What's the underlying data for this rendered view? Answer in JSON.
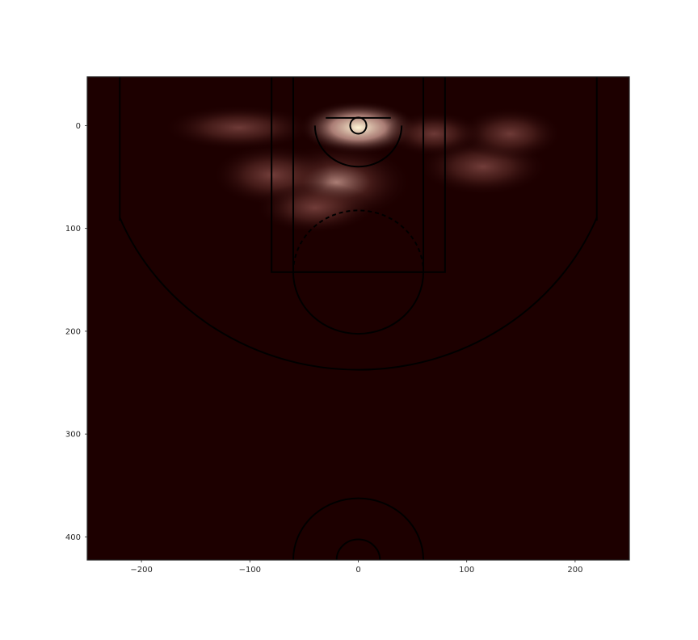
{
  "chart_data": {
    "type": "heatmap",
    "title": "",
    "xlabel": "",
    "ylabel": "",
    "xlim": [
      -250,
      250
    ],
    "ylim": [
      422.5,
      -47.5
    ],
    "x_ticks": [
      -200,
      -100,
      0,
      100,
      200
    ],
    "x_tick_labels": [
      "−200",
      "−100",
      "0",
      "100",
      "200"
    ],
    "y_ticks": [
      0,
      100,
      200,
      300,
      400
    ],
    "y_tick_labels": [
      "0",
      "100",
      "200",
      "300",
      "400"
    ],
    "grid": false,
    "legend": "none",
    "colormap": [
      "#1d0000",
      "#5a2a26",
      "#9a5a55",
      "#d9a79c",
      "#fff6d6"
    ],
    "background_color": "#1d0000",
    "density_peaks": [
      {
        "x": 0,
        "y": 2,
        "weight": 1.0
      },
      {
        "x": -110,
        "y": 2,
        "weight": 0.22
      },
      {
        "x": -20,
        "y": 55,
        "weight": 0.45
      },
      {
        "x": -80,
        "y": 48,
        "weight": 0.3
      },
      {
        "x": 115,
        "y": 40,
        "weight": 0.28
      },
      {
        "x": 140,
        "y": 8,
        "weight": 0.22
      },
      {
        "x": 70,
        "y": 8,
        "weight": 0.2
      },
      {
        "x": -40,
        "y": 80,
        "weight": 0.2
      }
    ],
    "court_overlay": {
      "hoop": {
        "center": [
          0,
          0
        ],
        "radius": 7.5
      },
      "backboard": {
        "x1": -30,
        "x2": 30,
        "y": -7.5
      },
      "restricted_area_radius": 40,
      "paint_outer": {
        "x": -80,
        "width": 160,
        "y": -47.5,
        "height": 190
      },
      "paint_inner": {
        "x": -60,
        "width": 120,
        "y": -47.5,
        "height": 190
      },
      "free_throw_circle": {
        "center": [
          0,
          142.5
        ],
        "radius": 60
      },
      "corner_three_x": 220,
      "corner_three_y_end": 92.5,
      "three_point_radius": 237.5,
      "center_court": {
        "center": [
          0,
          422.5
        ],
        "outer_radius": 60,
        "inner_radius": 20
      }
    }
  }
}
